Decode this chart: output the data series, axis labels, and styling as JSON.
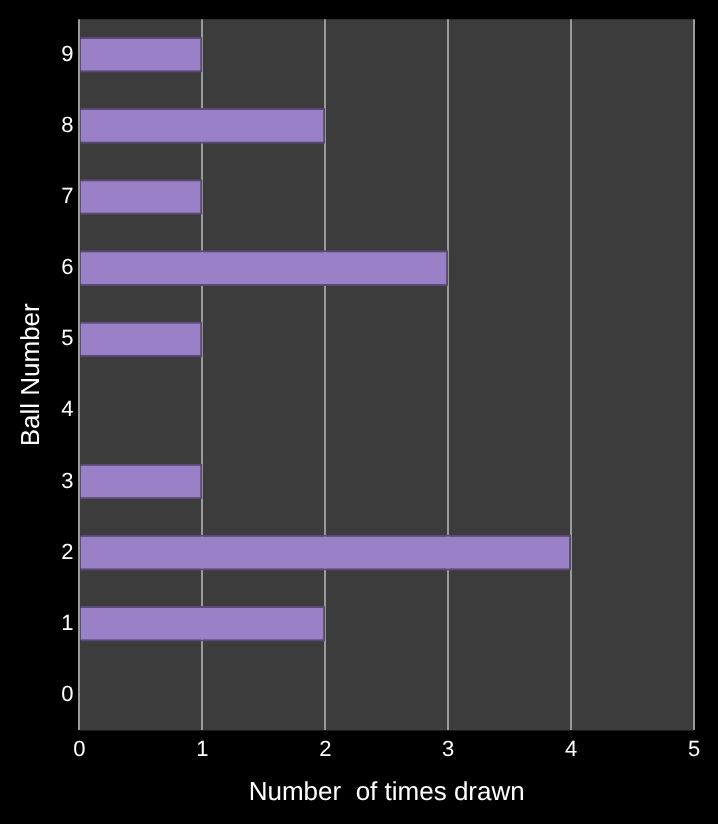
{
  "chart_data": {
    "type": "bar",
    "orientation": "horizontal",
    "xlabel": "Number  of times drawn",
    "ylabel": "Ball Number",
    "categories": [
      "9",
      "8",
      "7",
      "6",
      "5",
      "4",
      "3",
      "2",
      "1",
      "0"
    ],
    "values": [
      1,
      2,
      1,
      3,
      1,
      0,
      1,
      4,
      2,
      0
    ],
    "color": "#9a80c6",
    "xlim": [
      0,
      5
    ],
    "xticks": [
      0,
      1,
      2,
      3,
      4,
      5
    ],
    "grid": "x",
    "legend": false
  }
}
